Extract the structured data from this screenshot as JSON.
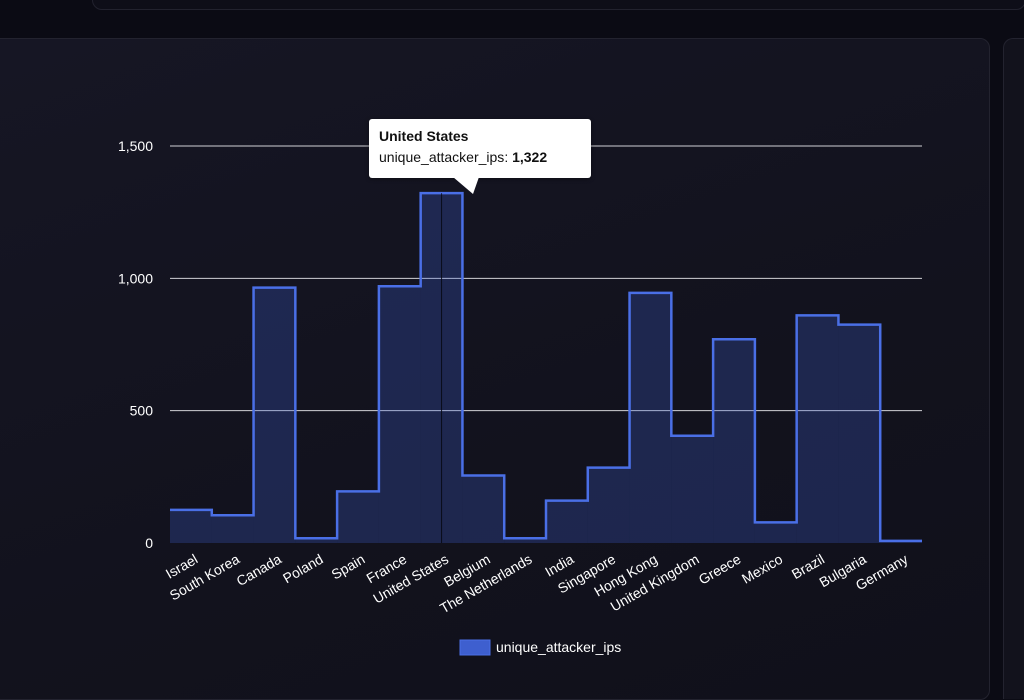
{
  "tooltip": {
    "title": "United States",
    "series_label": "unique_attacker_ips",
    "value_text": "1,322"
  },
  "chart_data": {
    "type": "area",
    "step": true,
    "categories": [
      "Israel",
      "South Korea",
      "Canada",
      "Poland",
      "Spain",
      "France",
      "United States",
      "Belgium",
      "The Netherlands",
      "India",
      "Singapore",
      "Hong Kong",
      "United Kingdom",
      "Greece",
      "Mexico",
      "Brazil",
      "Bulgaria",
      "Germany"
    ],
    "series": [
      {
        "name": "unique_attacker_ips",
        "values": [
          125,
          105,
          965,
          18,
          195,
          970,
          1322,
          255,
          18,
          160,
          285,
          945,
          405,
          770,
          78,
          860,
          825,
          8
        ],
        "color": "#3e5fcf"
      }
    ],
    "y_ticks": [
      {
        "value": 0,
        "label": "0"
      },
      {
        "value": 500,
        "label": "500"
      },
      {
        "value": 1000,
        "label": "1,000"
      },
      {
        "value": 1500,
        "label": "1,500"
      }
    ],
    "ylim": [
      0,
      1500
    ],
    "grid": true,
    "legend_position": "bottom",
    "highlight_category": "United States"
  }
}
